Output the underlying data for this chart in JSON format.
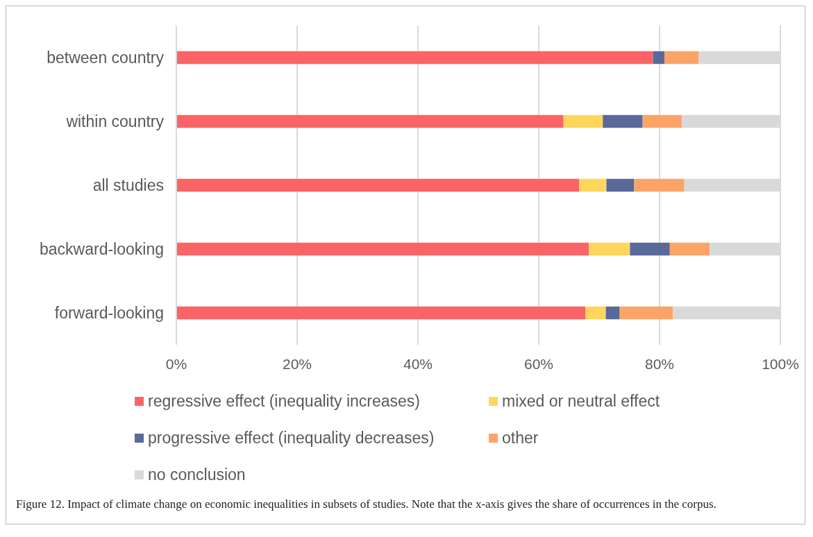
{
  "chart_data": {
    "type": "bar",
    "orientation": "horizontal",
    "stacked": true,
    "categories": [
      "between country",
      "within country",
      "all studies",
      "backward-looking",
      "forward-looking"
    ],
    "series": [
      {
        "name": "regressive effect (inequality increases)",
        "color": "#fb6466",
        "values": [
          78.9,
          64.1,
          66.7,
          68.3,
          67.7
        ]
      },
      {
        "name": "mixed or neutral effect",
        "color": "#ffd65c",
        "values": [
          0,
          6.5,
          4.5,
          6.8,
          3.4
        ]
      },
      {
        "name": "progressive effect (inequality decreases)",
        "color": "#58699a",
        "values": [
          1.9,
          6.6,
          4.6,
          6.6,
          2.3
        ]
      },
      {
        "name": "other",
        "color": "#fca468",
        "values": [
          5.7,
          6.5,
          8.3,
          6.6,
          8.8
        ]
      },
      {
        "name": "no conclusion",
        "color": "#d9d9d9",
        "values": [
          13.5,
          16.3,
          15.9,
          11.7,
          17.8
        ]
      }
    ],
    "xlim": [
      0,
      100
    ],
    "xticks": [
      {
        "value": 0,
        "label": "0%"
      },
      {
        "value": 20,
        "label": "20%"
      },
      {
        "value": 40,
        "label": "40%"
      },
      {
        "value": 60,
        "label": "60%"
      },
      {
        "value": 80,
        "label": "80%"
      },
      {
        "value": 100,
        "label": "100%"
      }
    ],
    "grid": "x",
    "legend": "bottom",
    "annotations": [
      "Figure 12. Impact of climate change on economic inequalities in subsets of studies. Note that the x-axis gives the share of occurrences in the corpus."
    ]
  }
}
